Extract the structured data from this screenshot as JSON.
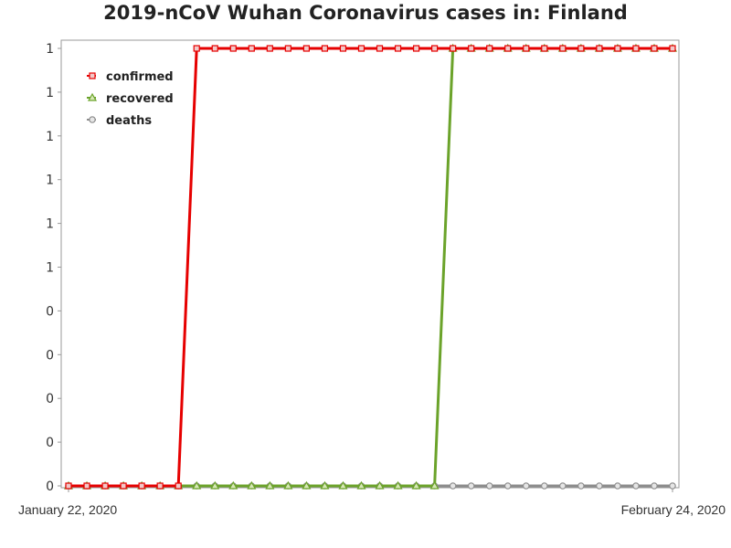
{
  "chart_data": {
    "type": "line",
    "title": "2019-nCoV Wuhan Coronavirus cases in: Finland",
    "xlabel": "",
    "ylabel": "",
    "x_tick_labels": [
      "January 22, 2020",
      "February 24, 2020"
    ],
    "y_tick_labels": [
      "0",
      "0",
      "0",
      "0",
      "0",
      "1",
      "1",
      "1",
      "1",
      "1",
      "1"
    ],
    "ylim": [
      0,
      1
    ],
    "grid": false,
    "legend_position": "top-left",
    "x": [
      "2020-01-22",
      "2020-01-23",
      "2020-01-24",
      "2020-01-25",
      "2020-01-26",
      "2020-01-27",
      "2020-01-28",
      "2020-01-29",
      "2020-01-30",
      "2020-01-31",
      "2020-02-01",
      "2020-02-02",
      "2020-02-03",
      "2020-02-04",
      "2020-02-05",
      "2020-02-06",
      "2020-02-07",
      "2020-02-08",
      "2020-02-09",
      "2020-02-10",
      "2020-02-11",
      "2020-02-12",
      "2020-02-13",
      "2020-02-14",
      "2020-02-15",
      "2020-02-16",
      "2020-02-17",
      "2020-02-18",
      "2020-02-19",
      "2020-02-20",
      "2020-02-21",
      "2020-02-22",
      "2020-02-23",
      "2020-02-24"
    ],
    "series": [
      {
        "name": "confirmed",
        "color": "#e60000",
        "marker": "square",
        "values": [
          0,
          0,
          0,
          0,
          0,
          0,
          0,
          1,
          1,
          1,
          1,
          1,
          1,
          1,
          1,
          1,
          1,
          1,
          1,
          1,
          1,
          1,
          1,
          1,
          1,
          1,
          1,
          1,
          1,
          1,
          1,
          1,
          1,
          1
        ]
      },
      {
        "name": "recovered",
        "color": "#6ba32a",
        "marker": "triangle",
        "values": [
          0,
          0,
          0,
          0,
          0,
          0,
          0,
          0,
          0,
          0,
          0,
          0,
          0,
          0,
          0,
          0,
          0,
          0,
          0,
          0,
          0,
          1,
          1,
          1,
          1,
          1,
          1,
          1,
          1,
          1,
          1,
          1,
          1,
          1
        ]
      },
      {
        "name": "deaths",
        "color": "#8c8c8c",
        "marker": "circle",
        "values": [
          0,
          0,
          0,
          0,
          0,
          0,
          0,
          0,
          0,
          0,
          0,
          0,
          0,
          0,
          0,
          0,
          0,
          0,
          0,
          0,
          0,
          0,
          0,
          0,
          0,
          0,
          0,
          0,
          0,
          0,
          0,
          0,
          0,
          0
        ]
      }
    ]
  }
}
